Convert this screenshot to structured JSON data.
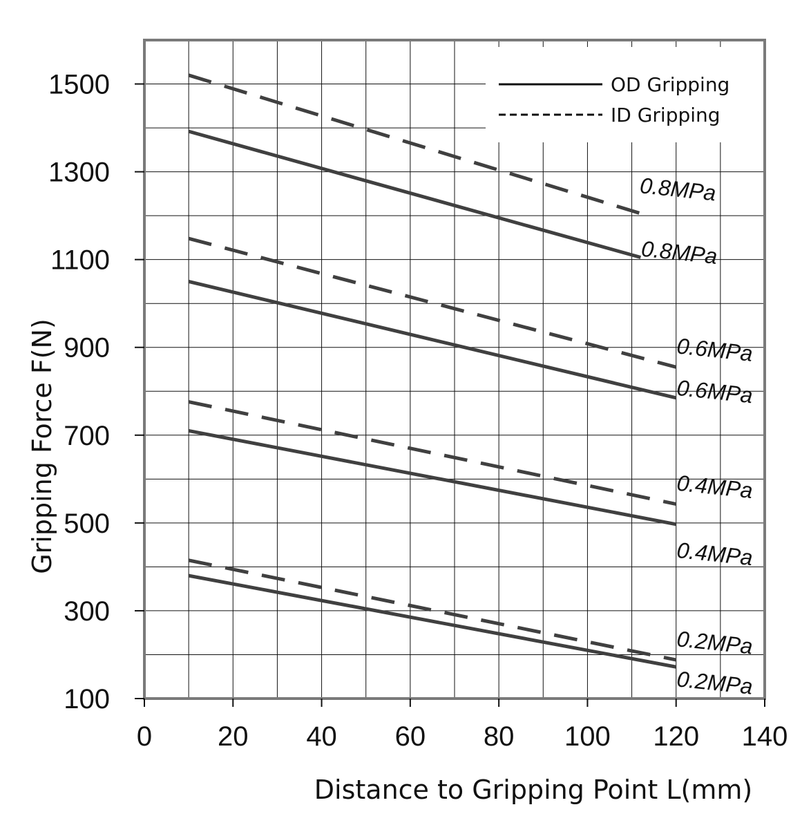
{
  "chart_data": {
    "type": "line",
    "xlabel": "Distance to Gripping Point  L(mm)",
    "ylabel": "Gripping Force   F(N)",
    "xlim": [
      0,
      140
    ],
    "ylim": [
      100,
      1600
    ],
    "x_ticks": [
      0,
      20,
      40,
      60,
      80,
      100,
      120,
      140
    ],
    "y_ticks": [
      100,
      300,
      500,
      700,
      900,
      1100,
      1300,
      1500
    ],
    "grid": true,
    "legend_position": "top-right",
    "legend": [
      {
        "label": "OD Gripping",
        "style": "solid"
      },
      {
        "label": "ID Gripping",
        "style": "dashed"
      }
    ],
    "line_color": "#404040",
    "series": [
      {
        "group": "OD Gripping",
        "style": "solid",
        "label": "0.8MPa",
        "x": [
          10,
          112
        ],
        "y": [
          1392,
          1105
        ]
      },
      {
        "group": "ID Gripping",
        "style": "dashed",
        "label": "0.8MPa",
        "x": [
          10,
          112
        ],
        "y": [
          1520,
          1205
        ]
      },
      {
        "group": "OD Gripping",
        "style": "solid",
        "label": "0.6MPa",
        "x": [
          10,
          120
        ],
        "y": [
          1050,
          785
        ]
      },
      {
        "group": "ID Gripping",
        "style": "dashed",
        "label": "0.6MPa",
        "x": [
          10,
          120
        ],
        "y": [
          1148,
          855
        ]
      },
      {
        "group": "OD Gripping",
        "style": "solid",
        "label": "0.4MPa",
        "x": [
          10,
          120
        ],
        "y": [
          710,
          497
        ]
      },
      {
        "group": "ID Gripping",
        "style": "dashed",
        "label": "0.4MPa",
        "x": [
          10,
          120
        ],
        "y": [
          776,
          543
        ]
      },
      {
        "group": "OD Gripping",
        "style": "solid",
        "label": "0.2MPa",
        "x": [
          10,
          120
        ],
        "y": [
          380,
          172
        ]
      },
      {
        "group": "ID Gripping",
        "style": "dashed",
        "label": "0.2MPa",
        "x": [
          10,
          120
        ],
        "y": [
          415,
          188
        ]
      }
    ]
  }
}
